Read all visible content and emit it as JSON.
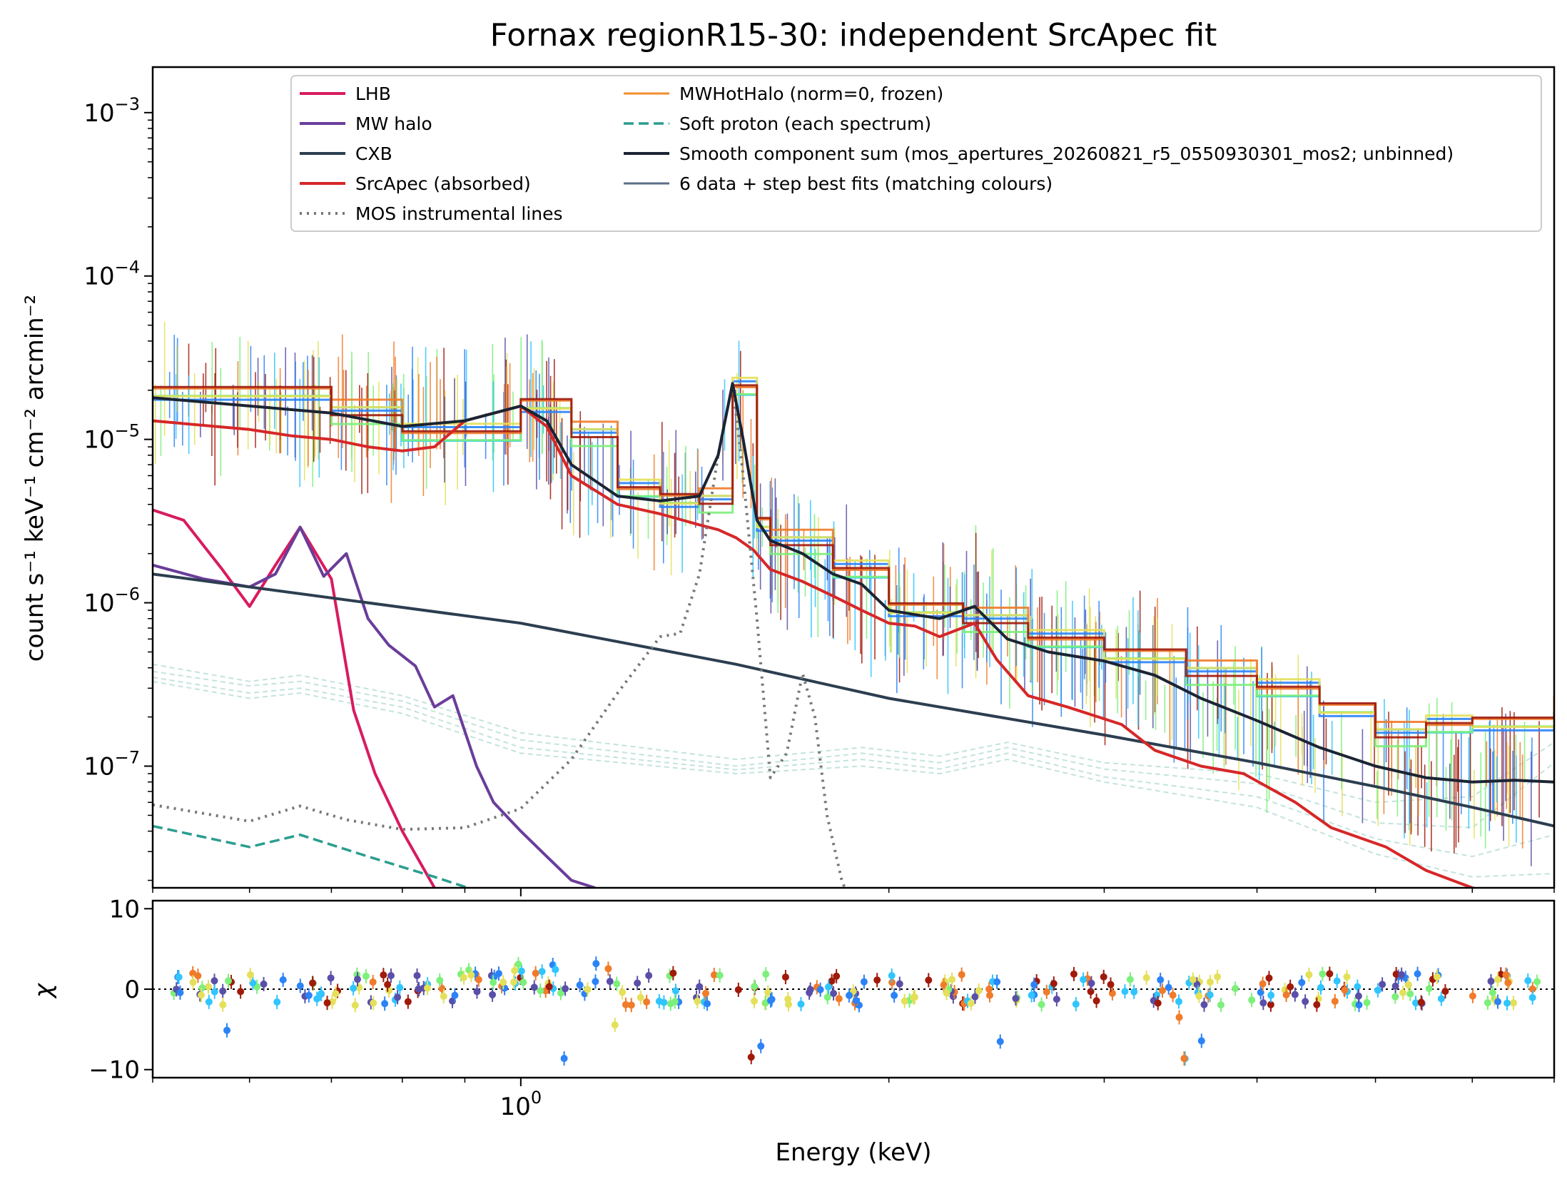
{
  "figure": {
    "title": "Fornax regionR15-30: independent SrcApec fit"
  },
  "colors": {
    "LHB": "#d81b60",
    "MW halo": "#6a3d9a",
    "CXB": "#2c3e50",
    "SrcApec (absorbed)": "#d62728",
    "MOS instrumental lines": "#777777",
    "MWHotHalo (norm=0, frozen)": "#f28e2b",
    "Soft proton (each spectrum)": "#2a9d8f",
    "Smooth component sum (mos_apertures_20260821_r5_0550930301_mos2; unbinned)": "#1b2433",
    "6 data + step best fits (matching colours)": "#5b6f86",
    "data": [
      "#2b83f6",
      "#30c5ff",
      "#7cf07a",
      "#e4e05a",
      "#f07b2a",
      "#a01a0a",
      "#5a4fa8"
    ]
  },
  "chart_data": [
    {
      "type": "line",
      "panel": "spectrum",
      "title": "Fornax regionR15-30: independent SrcApec fit",
      "xlabel": "Energy (keV)",
      "ylabel": "count s⁻¹ keV⁻¹ cm⁻² arcmin⁻²",
      "xscale": "log",
      "yscale": "log",
      "xlim": [
        0.5,
        7.0
      ],
      "ylim": [
        1.8e-08,
        0.0019
      ],
      "xtick_labels": [
        "10⁰"
      ],
      "ytick_labels": [
        {
          "base": "10",
          "exp": "−7",
          "value": 1e-07
        },
        {
          "base": "10",
          "exp": "−6",
          "value": 1e-06
        },
        {
          "base": "10",
          "exp": "−5",
          "value": 1e-05
        },
        {
          "base": "10",
          "exp": "−4",
          "value": 0.0001
        },
        {
          "base": "10",
          "exp": "−3",
          "value": 0.001
        }
      ],
      "legend_position": "top",
      "legend": [
        "LHB",
        "MW halo",
        "CXB",
        "SrcApec (absorbed)",
        "MOS instrumental lines",
        "MWHotHalo (norm=0, frozen)",
        "Soft proton (each spectrum)",
        "Smooth component sum (mos_apertures_20260821_r5_0550930301_mos2; unbinned)",
        "6 data + step best fits (matching colours)"
      ],
      "series": [
        {
          "name": "LHB",
          "x": [
            0.5,
            0.53,
            0.57,
            0.6,
            0.63,
            0.66,
            0.7,
            0.73,
            0.76,
            0.8,
            0.85
          ],
          "y": [
            3.7e-06,
            3.2e-06,
            1.6e-06,
            9.5e-07,
            1.7e-06,
            2.9e-06,
            1.4e-06,
            2.2e-07,
            9e-08,
            4e-08,
            1.8e-08
          ]
        },
        {
          "name": "MW halo",
          "x": [
            0.5,
            0.55,
            0.6,
            0.63,
            0.66,
            0.69,
            0.72,
            0.75,
            0.78,
            0.82,
            0.85,
            0.88,
            0.92,
            0.95,
            1.0,
            1.05,
            1.1,
            1.15
          ],
          "y": [
            1.7e-06,
            1.4e-06,
            1.25e-06,
            1.5e-06,
            2.9e-06,
            1.45e-06,
            2e-06,
            8e-07,
            5.5e-07,
            4.1e-07,
            2.3e-07,
            2.7e-07,
            1e-07,
            6e-08,
            4e-08,
            2.8e-08,
            2e-08,
            1.8e-08
          ]
        },
        {
          "name": "CXB",
          "x": [
            0.5,
            1.0,
            1.5,
            2.0,
            3.0,
            4.0,
            5.0,
            6.0,
            7.0
          ],
          "y": [
            1.5e-06,
            7.5e-07,
            4.2e-07,
            2.6e-07,
            1.55e-07,
            1.05e-07,
            7.5e-08,
            5.6e-08,
            4.3e-08
          ]
        },
        {
          "name": "SrcApec (absorbed)",
          "x": [
            0.5,
            0.6,
            0.65,
            0.7,
            0.75,
            0.8,
            0.85,
            0.9,
            1.0,
            1.05,
            1.1,
            1.2,
            1.3,
            1.4,
            1.45,
            1.5,
            1.55,
            1.6,
            1.7,
            1.8,
            1.9,
            2.0,
            2.1,
            2.2,
            2.35,
            2.45,
            2.6,
            2.8,
            3.1,
            3.3,
            3.6,
            3.9,
            4.3,
            4.6,
            5.1,
            5.5,
            6.0,
            6.5,
            7.0
          ],
          "y": [
            1.3e-05,
            1.15e-05,
            1.05e-05,
            1e-05,
            9e-06,
            8.5e-06,
            9e-06,
            1.3e-05,
            1.6e-05,
            1.2e-05,
            6e-06,
            4e-06,
            3.5e-06,
            3e-06,
            2.8e-06,
            2.5e-06,
            2.1e-06,
            1.6e-06,
            1.35e-06,
            1.1e-06,
            9e-07,
            7.5e-07,
            7.2e-07,
            6.2e-07,
            7.5e-07,
            4.5e-07,
            2.7e-07,
            2.3e-07,
            1.8e-07,
            1.25e-07,
            1e-07,
            9e-08,
            6e-08,
            4.2e-08,
            3.2e-08,
            2.3e-08,
            1.8e-08,
            1.5e-08,
            1.2e-08
          ]
        },
        {
          "name": "MOS instrumental lines",
          "x": [
            0.5,
            0.6,
            0.66,
            0.72,
            0.8,
            0.9,
            1.0,
            1.1,
            1.2,
            1.3,
            1.35,
            1.4,
            1.45,
            1.49,
            1.52,
            1.56,
            1.6,
            1.65,
            1.7,
            1.74,
            1.78,
            1.83,
            1.9
          ],
          "y": [
            5.8e-08,
            4.6e-08,
            5.7e-08,
            4.7e-08,
            4.1e-08,
            4.2e-08,
            5.5e-08,
            1.1e-07,
            2.8e-07,
            6.2e-07,
            6.5e-07,
            1.5e-06,
            8e-06,
            2.2e-05,
            6e-06,
            8e-07,
            8.5e-08,
            1.2e-07,
            3.7e-07,
            2e-07,
            5e-08,
            2e-08,
            1e-08
          ]
        },
        {
          "name": "Soft proton (each spectrum)",
          "x": [
            0.5,
            0.6,
            0.66,
            0.75,
            0.85,
            0.95,
            1.0
          ],
          "y": [
            4.3e-08,
            3.2e-08,
            3.8e-08,
            2.8e-08,
            2.1e-08,
            1.6e-08,
            1.3e-08
          ]
        },
        {
          "name": "Smooth component sum (mos_apertures_20260821_r5_0550930301_mos2; unbinned)",
          "x": [
            0.5,
            0.6,
            0.7,
            0.8,
            0.9,
            1.0,
            1.05,
            1.1,
            1.2,
            1.3,
            1.4,
            1.45,
            1.49,
            1.52,
            1.56,
            1.6,
            1.7,
            1.8,
            1.9,
            2.0,
            2.2,
            2.35,
            2.5,
            2.7,
            3.0,
            3.3,
            3.6,
            4.0,
            4.5,
            5.0,
            5.5,
            6.0,
            6.5,
            7.0
          ],
          "y": [
            1.8e-05,
            1.6e-05,
            1.45e-05,
            1.2e-05,
            1.3e-05,
            1.6e-05,
            1.3e-05,
            7e-06,
            4.5e-06,
            4.2e-06,
            4.5e-06,
            8e-06,
            2.2e-05,
            1e-05,
            3.2e-06,
            2.4e-06,
            2e-06,
            1.5e-06,
            1.3e-06,
            9e-07,
            8e-07,
            9.5e-07,
            6e-07,
            5e-07,
            4.4e-07,
            3.6e-07,
            2.6e-07,
            1.9e-07,
            1.3e-07,
            1e-07,
            8.5e-08,
            8e-08,
            8.2e-08,
            8e-08
          ]
        },
        {
          "name": "6 data + step best fits (matching colours)",
          "x": [
            0.5,
            0.7,
            0.8,
            1.0,
            1.1,
            1.2,
            1.3,
            1.4,
            1.49,
            1.56,
            1.6,
            1.8,
            2.0,
            2.3,
            2.6,
            3.0,
            3.5,
            4.0,
            4.5,
            5.0,
            5.5,
            6.0,
            7.0
          ],
          "y": [
            1.9e-05,
            1.5e-05,
            1.1e-05,
            1.6e-05,
            1.1e-05,
            5e-06,
            4.2e-06,
            4.3e-06,
            2.1e-05,
            3e-06,
            2.4e-06,
            1.6e-06,
            9e-07,
            8e-07,
            6e-07,
            4.7e-07,
            3.8e-07,
            3e-07,
            2.2e-07,
            1.6e-07,
            1.8e-07,
            1.8e-07,
            2.3e-07
          ]
        }
      ]
    },
    {
      "type": "scatter",
      "panel": "residuals",
      "xlabel": "Energy (keV)",
      "ylabel": "χ",
      "xscale": "log",
      "xlim": [
        0.5,
        7.0
      ],
      "ylim": [
        -11,
        11
      ],
      "ytick_labels": [
        "10",
        "0",
        "−10"
      ],
      "xtick_labels": [
        "10⁰"
      ],
      "reference_line": 0,
      "points_summary": {
        "count_approx": 300,
        "x_range": [
          0.52,
          6.8
        ],
        "y_range": [
          -9,
          4
        ]
      }
    }
  ]
}
